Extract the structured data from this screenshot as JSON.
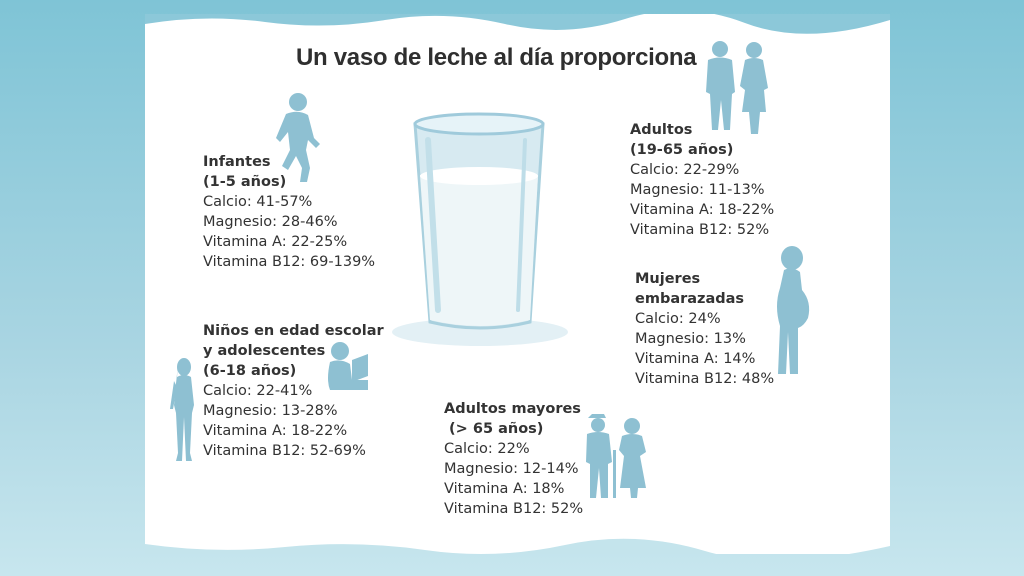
{
  "title": "Un vaso de leche al día proporciona",
  "groups": {
    "infantes": {
      "head": [
        "Infantes",
        "(1-5 años)"
      ],
      "rows": [
        "Calcio: 41-57%",
        "Magnesio: 28-46%",
        "Vitamina A:  22-25%",
        "Vitamina B12: 69-139%"
      ]
    },
    "escolares": {
      "head": [
        "Niños en edad escolar",
        "y adolescentes",
        "(6-18 años)"
      ],
      "rows": [
        "Calcio: 22-41%",
        "Magnesio: 13-28%",
        "Vitamina A: 18-22%",
        "Vitamina B12: 52-69%"
      ]
    },
    "adultos": {
      "head": [
        "Adultos",
        "(19-65 años)"
      ],
      "rows": [
        "Calcio: 22-29%",
        "Magnesio: 11-13%",
        "Vitamina A: 18-22%",
        "Vitamina B12: 52%"
      ]
    },
    "embarazadas": {
      "head": [
        "Mujeres",
        "embarazadas"
      ],
      "rows": [
        "Calcio: 24%",
        "Magnesio: 13%",
        "Vitamina A: 14%",
        "Vitamina B12: 48%"
      ]
    },
    "mayores": {
      "head": [
        "Adultos mayores",
        " (> 65 años)"
      ],
      "rows": [
        "Calcio: 22%",
        "Magnesio: 12-14%",
        "Vitamina A: 18%",
        "Vitamina B12: 52%"
      ]
    }
  },
  "icons": [
    "child-running-icon",
    "child-reading-icon",
    "girl-standing-icon",
    "couple-walking-icon",
    "pregnant-woman-icon",
    "elderly-couple-icon",
    "milk-glass-icon"
  ],
  "colors": {
    "background": "#8cc8d9",
    "silhouette": "#8ec0d2",
    "text": "#333333",
    "milk": "#eef6f8"
  }
}
